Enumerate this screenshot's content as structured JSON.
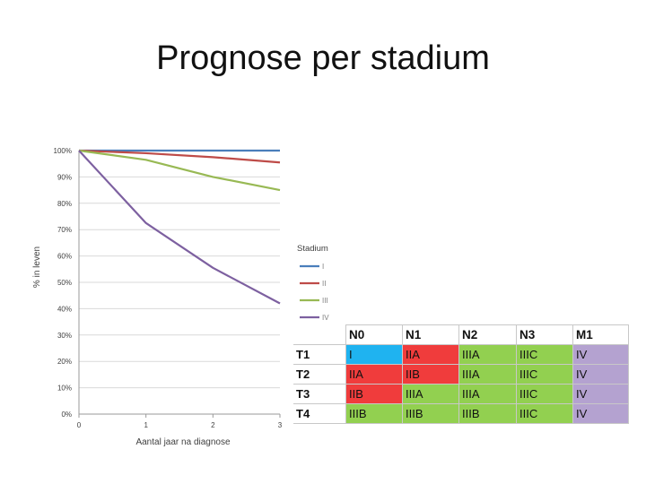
{
  "slide": {
    "title": "Prognose per stadium"
  },
  "chart_data": {
    "type": "line",
    "x": [
      0,
      1,
      2,
      3
    ],
    "xlabel": "Aantal jaar na diagnose",
    "ylabel": "% in leven",
    "xlim": [
      0,
      3
    ],
    "ylim": [
      0,
      100
    ],
    "x_ticks": [
      "0",
      "1",
      "2",
      "3"
    ],
    "y_ticks": [
      "0%",
      "10%",
      "20%",
      "30%",
      "40%",
      "50%",
      "60%",
      "70%",
      "80%",
      "90%",
      "100%"
    ],
    "grid": true,
    "legend_title": "Stadium",
    "legend_position": "right",
    "series": [
      {
        "name": "I",
        "color": "#4a7ebb",
        "values": [
          100,
          100,
          100,
          100
        ]
      },
      {
        "name": "II",
        "color": "#be4b48",
        "values": [
          100,
          99,
          97.5,
          95.5
        ]
      },
      {
        "name": "III",
        "color": "#98b954",
        "values": [
          100,
          96.5,
          90,
          85
        ]
      },
      {
        "name": "IV",
        "color": "#7d60a0",
        "values": [
          100,
          72.5,
          55.5,
          42
        ]
      }
    ]
  },
  "table": {
    "columns": [
      "N0",
      "N1",
      "N2",
      "N3",
      "M1"
    ],
    "rows": [
      {
        "label": "T1",
        "cells": [
          "I",
          "IIA",
          "IIIA",
          "IIIC",
          "IV"
        ]
      },
      {
        "label": "T2",
        "cells": [
          "IIA",
          "IIB",
          "IIIA",
          "IIIC",
          "IV"
        ]
      },
      {
        "label": "T3",
        "cells": [
          "IIB",
          "IIIA",
          "IIIA",
          "IIIC",
          "IV"
        ]
      },
      {
        "label": "T4",
        "cells": [
          "IIIB",
          "IIIB",
          "IIIB",
          "IIIC",
          "IV"
        ]
      }
    ],
    "cell_colors": [
      [
        "#1fb3f0",
        "#f03c3c",
        "#92d050",
        "#92d050",
        "#b4a2d0"
      ],
      [
        "#f03c3c",
        "#f03c3c",
        "#92d050",
        "#92d050",
        "#b4a2d0"
      ],
      [
        "#f03c3c",
        "#92d050",
        "#92d050",
        "#92d050",
        "#b4a2d0"
      ],
      [
        "#92d050",
        "#92d050",
        "#92d050",
        "#92d050",
        "#b4a2d0"
      ]
    ]
  }
}
